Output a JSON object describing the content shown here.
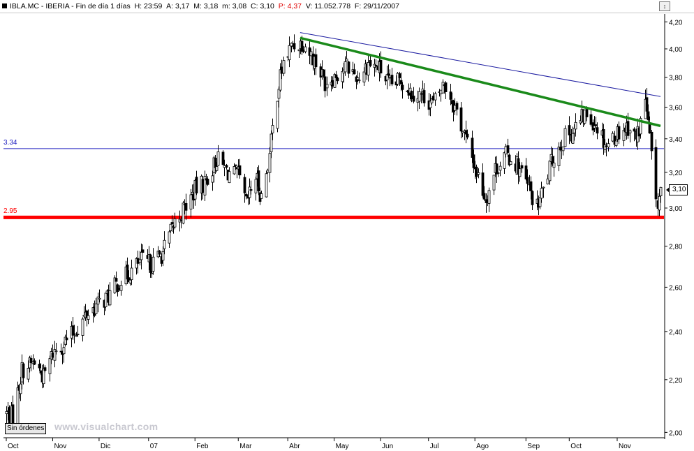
{
  "info_bar": {
    "ticker": "IBLA.MC - IBERIA - Fin de día 1 días",
    "h_label": "H:",
    "h_value": "23:59",
    "a_label": "A:",
    "a_value": "3,17",
    "m_label": "M:",
    "m_value": "3,18",
    "low_label": "m:",
    "low_value": "3,08",
    "c_label": "C:",
    "c_value": "3,10",
    "p_label": "P:",
    "p_value": "4,37",
    "v_label": "V:",
    "v_value": "11.052.778",
    "f_label": "F:",
    "f_value": "29/11/2007"
  },
  "window_control": "↕",
  "sin_ordenes": "Sin órdenes",
  "watermark": "www.visualchart.com",
  "price_tag": "3,10",
  "colors": {
    "candles": "#000000",
    "support_line": "#ff0000",
    "trend_green": "#1a8a1a",
    "trend_blue": "#1a1aa0",
    "level_line": "#2020c0",
    "axis": "#000000",
    "negative": "#e00000"
  },
  "chart_data": {
    "type": "candlestick",
    "y_scale": "log",
    "ylim": [
      1.99,
      4.24
    ],
    "y_ticks": [
      "4,20",
      "4,00",
      "3,80",
      "3,60",
      "3,40",
      "3,20",
      "3,00",
      "2,80",
      "2,60",
      "2,40",
      "2,20",
      "2,00"
    ],
    "x_labels": [
      "Oct",
      "Nov",
      "Dic",
      "07",
      "Feb",
      "Mar",
      "Abr",
      "May",
      "Jun",
      "Jul",
      "Ago",
      "Sep",
      "Oct",
      "Nov"
    ],
    "x_dates": [
      "2006-10-02",
      "2006-11-01",
      "2006-12-01",
      "2007-01-02",
      "2007-02-01",
      "2007-03-01",
      "2007-04-02",
      "2007-05-02",
      "2007-06-01",
      "2007-07-02",
      "2007-08-01",
      "2007-09-03",
      "2007-10-01",
      "2007-11-01"
    ],
    "x_range": [
      "2006-10-02",
      "2007-11-29"
    ],
    "horizontal_levels": [
      {
        "label": "3.34",
        "value": 3.34,
        "color": "#2020c0"
      },
      {
        "label": "2.95",
        "value": 2.95,
        "color": "#ff0000"
      }
    ],
    "trend_lines": [
      {
        "color": "#1a8a1a",
        "from": [
          "2007-04-10",
          4.08
        ],
        "to": [
          "2007-11-29",
          3.48
        ]
      },
      {
        "color": "#1a1aa0",
        "from": [
          "2007-04-10",
          4.12
        ],
        "to": [
          "2007-11-29",
          3.67
        ]
      }
    ],
    "close_path": [
      [
        "2006-10-02",
        2.07
      ],
      [
        "2006-10-06",
        2.06
      ],
      [
        "2006-10-12",
        2.24
      ],
      [
        "2006-10-20",
        2.27
      ],
      [
        "2006-10-26",
        2.21
      ],
      [
        "2006-11-01",
        2.31
      ],
      [
        "2006-11-08",
        2.35
      ],
      [
        "2006-11-15",
        2.4
      ],
      [
        "2006-11-22",
        2.47
      ],
      [
        "2006-11-30",
        2.52
      ],
      [
        "2006-12-07",
        2.56
      ],
      [
        "2006-12-14",
        2.63
      ],
      [
        "2006-12-21",
        2.67
      ],
      [
        "2006-12-28",
        2.73
      ],
      [
        "2007-01-04",
        2.71
      ],
      [
        "2007-01-11",
        2.77
      ],
      [
        "2007-01-18",
        2.91
      ],
      [
        "2007-01-25",
        3.0
      ],
      [
        "2007-02-01",
        3.1
      ],
      [
        "2007-02-08",
        3.15
      ],
      [
        "2007-02-15",
        3.28
      ],
      [
        "2007-02-22",
        3.2
      ],
      [
        "2007-03-01",
        3.18
      ],
      [
        "2007-03-06",
        3.02
      ],
      [
        "2007-03-12",
        3.18
      ],
      [
        "2007-03-16",
        3.06
      ],
      [
        "2007-03-21",
        3.3
      ],
      [
        "2007-03-26",
        3.7
      ],
      [
        "2007-03-30",
        3.9
      ],
      [
        "2007-04-05",
        4.03
      ],
      [
        "2007-04-12",
        4.05
      ],
      [
        "2007-04-19",
        3.92
      ],
      [
        "2007-04-26",
        3.77
      ],
      [
        "2007-05-03",
        3.82
      ],
      [
        "2007-05-10",
        3.88
      ],
      [
        "2007-05-17",
        3.8
      ],
      [
        "2007-05-24",
        3.9
      ],
      [
        "2007-05-31",
        3.86
      ],
      [
        "2007-06-07",
        3.74
      ],
      [
        "2007-06-14",
        3.78
      ],
      [
        "2007-06-21",
        3.7
      ],
      [
        "2007-06-28",
        3.68
      ],
      [
        "2007-07-05",
        3.62
      ],
      [
        "2007-07-12",
        3.76
      ],
      [
        "2007-07-19",
        3.6
      ],
      [
        "2007-07-26",
        3.4
      ],
      [
        "2007-08-02",
        3.2
      ],
      [
        "2007-08-08",
        3.05
      ],
      [
        "2007-08-14",
        3.22
      ],
      [
        "2007-08-21",
        3.3
      ],
      [
        "2007-08-28",
        3.25
      ],
      [
        "2007-09-04",
        3.12
      ],
      [
        "2007-09-10",
        3.0
      ],
      [
        "2007-09-14",
        3.1
      ],
      [
        "2007-09-20",
        3.28
      ],
      [
        "2007-09-27",
        3.4
      ],
      [
        "2007-10-04",
        3.46
      ],
      [
        "2007-10-11",
        3.55
      ],
      [
        "2007-10-18",
        3.5
      ],
      [
        "2007-10-25",
        3.36
      ],
      [
        "2007-11-01",
        3.44
      ],
      [
        "2007-11-08",
        3.48
      ],
      [
        "2007-11-13",
        3.4
      ],
      [
        "2007-11-16",
        3.5
      ],
      [
        "2007-11-19",
        3.66
      ],
      [
        "2007-11-22",
        3.4
      ],
      [
        "2007-11-26",
        3.0
      ],
      [
        "2007-11-29",
        3.1
      ]
    ]
  }
}
